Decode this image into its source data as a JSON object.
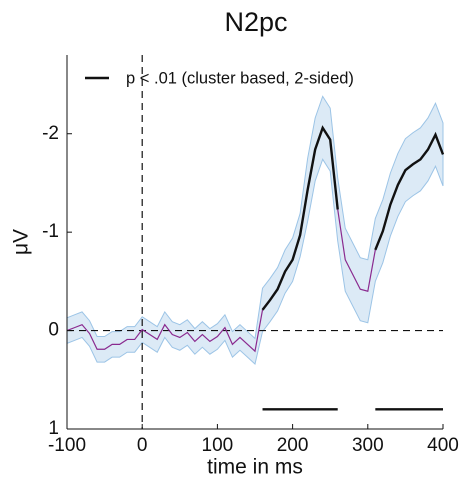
{
  "chart_data": {
    "type": "line",
    "title": "N2pc",
    "xlabel": "time in ms",
    "ylabel": "μV",
    "x": [
      -100,
      -90,
      -80,
      -70,
      -60,
      -50,
      -40,
      -30,
      -20,
      -10,
      0,
      10,
      20,
      30,
      40,
      50,
      60,
      70,
      80,
      90,
      100,
      110,
      120,
      130,
      140,
      150,
      160,
      170,
      180,
      190,
      200,
      210,
      220,
      230,
      240,
      250,
      260,
      270,
      280,
      290,
      300,
      310,
      320,
      330,
      340,
      350,
      360,
      370,
      380,
      390,
      400
    ],
    "series": [
      {
        "name": "p < .01 (cluster based, 2-sided)",
        "color": "#111111",
        "nonsig_color": "#8a2a8f",
        "values": [
          0,
          -0.03,
          -0.06,
          0.03,
          0.19,
          0.19,
          0.14,
          0.14,
          0.09,
          0.09,
          -0.01,
          0.04,
          0.09,
          -0.06,
          0.04,
          0.07,
          0.02,
          0.11,
          0.04,
          0.11,
          0.06,
          -0.03,
          0.14,
          0.07,
          0.14,
          0.21,
          -0.21,
          -0.31,
          -0.42,
          -0.6,
          -0.72,
          -0.97,
          -1.43,
          -1.84,
          -2.06,
          -1.94,
          -1.23,
          -0.72,
          -0.57,
          -0.42,
          -0.4,
          -0.82,
          -1.01,
          -1.28,
          -1.48,
          -1.63,
          -1.69,
          -1.74,
          -1.84,
          -1.99,
          -1.79
        ]
      }
    ],
    "ci_lower": [
      -0.13,
      -0.16,
      -0.19,
      -0.1,
      0.06,
      0.06,
      0.01,
      0.01,
      -0.04,
      -0.04,
      -0.14,
      -0.09,
      -0.04,
      -0.19,
      -0.09,
      -0.06,
      -0.11,
      -0.02,
      -0.09,
      -0.02,
      -0.07,
      -0.16,
      0.01,
      -0.06,
      0.01,
      0.08,
      -0.43,
      -0.53,
      -0.64,
      -0.82,
      -0.94,
      -1.19,
      -1.75,
      -2.16,
      -2.38,
      -2.26,
      -1.55,
      -1.04,
      -0.89,
      -0.74,
      -0.72,
      -1.14,
      -1.33,
      -1.6,
      -1.8,
      -1.95,
      -2.01,
      -2.06,
      -2.16,
      -2.31,
      -2.11
    ],
    "ci_upper": [
      0.13,
      0.1,
      0.07,
      0.16,
      0.32,
      0.32,
      0.27,
      0.27,
      0.22,
      0.22,
      0.12,
      0.17,
      0.22,
      0.07,
      0.17,
      0.2,
      0.15,
      0.24,
      0.17,
      0.24,
      0.19,
      0.1,
      0.27,
      0.2,
      0.27,
      0.34,
      0.01,
      -0.09,
      -0.2,
      -0.38,
      -0.5,
      -0.75,
      -1.11,
      -1.52,
      -1.74,
      -1.62,
      -0.91,
      -0.4,
      -0.25,
      -0.1,
      -0.08,
      -0.5,
      -0.69,
      -0.96,
      -1.16,
      -1.31,
      -1.37,
      -1.42,
      -1.52,
      -1.67,
      -1.47
    ],
    "ci_color": "#dceaf6",
    "ci_edge_color": "#9cc4e6",
    "clusters": [
      {
        "start": 160,
        "end": 260
      },
      {
        "start": 310,
        "end": 400
      }
    ],
    "cluster_y": 0.8,
    "xlim": [
      -100,
      400
    ],
    "xticks": [
      -100,
      0,
      100,
      200,
      300,
      400
    ],
    "ylim": [
      -2.8,
      1
    ],
    "yticks": [
      -2,
      -1,
      0,
      1
    ],
    "y_inverted": true,
    "hlines": [
      0
    ],
    "vlines": [
      0
    ],
    "legend": "upper-left"
  }
}
